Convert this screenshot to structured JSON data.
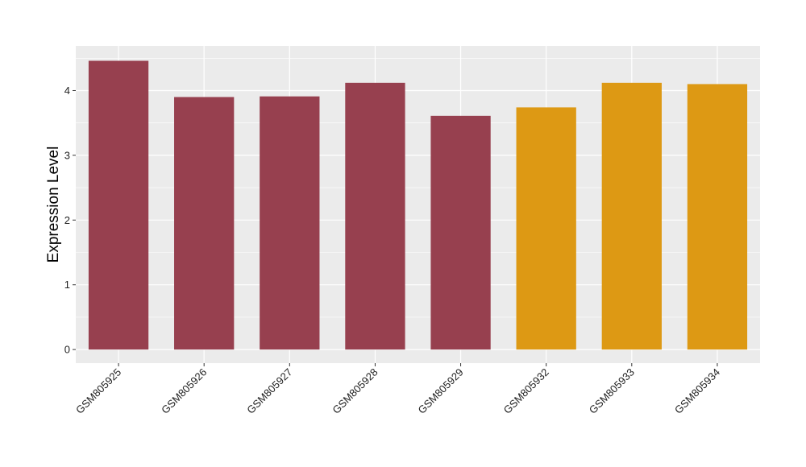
{
  "chart_data": {
    "type": "bar",
    "title": "",
    "xlabel": "",
    "ylabel": "Expression Level",
    "categories": [
      "GSM805925",
      "GSM805926",
      "GSM805927",
      "GSM805928",
      "GSM805929",
      "GSM805932",
      "GSM805933",
      "GSM805934"
    ],
    "values": [
      4.46,
      3.9,
      3.91,
      4.12,
      3.61,
      3.74,
      4.12,
      4.1
    ],
    "groups": [
      1,
      1,
      1,
      1,
      1,
      2,
      2,
      2
    ],
    "group_colors": {
      "1": "#97404f",
      "2": "#dd9914"
    },
    "ylim": [
      -0.21,
      4.69
    ],
    "yticks": [
      0,
      1,
      2,
      3,
      4
    ],
    "grid": true,
    "panel_background": "#ebebeb",
    "grid_color": "#ffffff",
    "legend": "none"
  }
}
